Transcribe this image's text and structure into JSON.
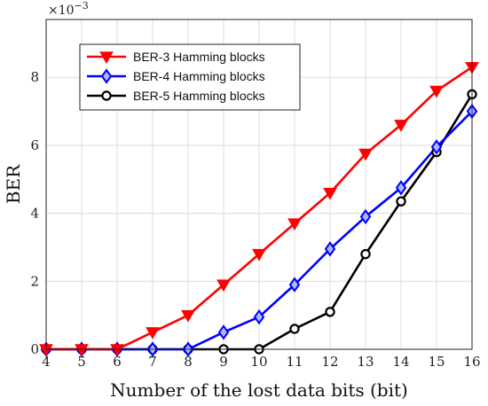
{
  "chart_data": {
    "type": "line",
    "title": "",
    "xlabel": "Number of the lost data bits (bit)",
    "ylabel": "BER",
    "y_exponent_base": "×10",
    "y_exponent_power": "−3",
    "x": [
      4,
      5,
      6,
      7,
      8,
      9,
      10,
      11,
      12,
      13,
      14,
      15,
      16
    ],
    "xlim": [
      4,
      16
    ],
    "ylim": [
      0,
      9.7
    ],
    "yticks": [
      0,
      2,
      4,
      6,
      8
    ],
    "grid": true,
    "legend_position": "top-left",
    "series": [
      {
        "name": "BER-3 Hamming blocks",
        "color": "#ff0000",
        "marker": "triangle-down",
        "values": [
          0,
          0,
          0,
          0.5,
          1.0,
          1.9,
          2.8,
          3.7,
          4.6,
          5.75,
          6.6,
          7.6,
          8.3
        ]
      },
      {
        "name": "BER-4 Hamming blocks",
        "color": "#0000ff",
        "marker": "diamond",
        "values": [
          0,
          0,
          0,
          0,
          0,
          0.5,
          0.95,
          1.9,
          2.95,
          3.9,
          4.75,
          5.95,
          7.0
        ]
      },
      {
        "name": "BER-5 Hamming blocks",
        "color": "#000000",
        "marker": "circle",
        "values": [
          0,
          0,
          0,
          0,
          0,
          0,
          0,
          0.6,
          1.1,
          2.8,
          4.35,
          5.8,
          7.5
        ]
      }
    ]
  }
}
